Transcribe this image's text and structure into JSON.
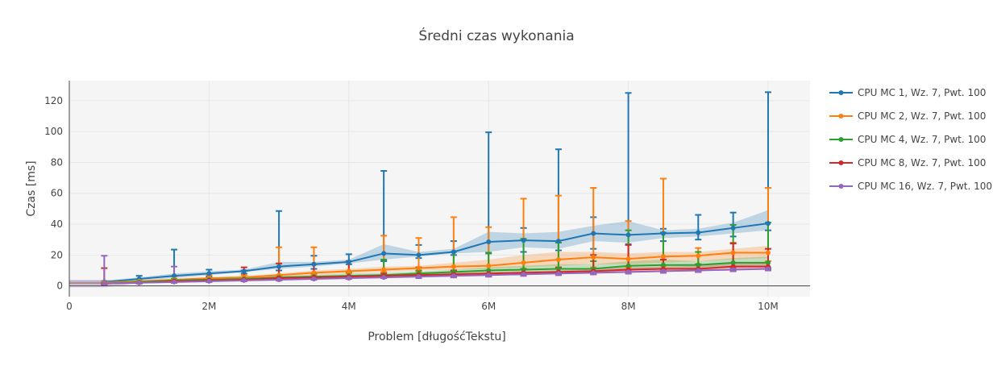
{
  "chart_data": {
    "type": "line",
    "title": "Średni czas wykonania",
    "xlabel": "Problem [długośćTekstu]",
    "ylabel": "Czas [ms]",
    "xlim": [
      0,
      10600000
    ],
    "ylim": [
      -7,
      133
    ],
    "x_ticks": [
      0,
      2000000,
      4000000,
      6000000,
      8000000,
      10000000
    ],
    "x_tick_labels": [
      "0",
      "2M",
      "4M",
      "6M",
      "8M",
      "10M"
    ],
    "y_ticks": [
      0,
      20,
      40,
      60,
      80,
      100,
      120
    ],
    "y_tick_labels": [
      "0",
      "20",
      "40",
      "60",
      "80",
      "100",
      "120"
    ],
    "grid": true,
    "legend_position": "right",
    "x": [
      500000,
      1000000,
      1500000,
      2000000,
      2500000,
      3000000,
      3500000,
      4000000,
      4500000,
      5000000,
      5500000,
      6000000,
      6500000,
      7000000,
      7500000,
      8000000,
      8500000,
      9000000,
      9500000,
      10000000
    ],
    "series": [
      {
        "name": "CPU MC 1, Wz. 7, Pwt. 100",
        "color": "#1f77b4",
        "values": [
          2.5,
          4.5,
          6.5,
          8,
          9.5,
          12.5,
          14,
          15.5,
          21,
          20,
          22,
          28.5,
          29.5,
          29,
          34,
          33,
          34,
          34.5,
          37.5,
          40.5
        ],
        "err_low": [
          1,
          3,
          4,
          6,
          8,
          10,
          11,
          14,
          16,
          18,
          20,
          21,
          22,
          23,
          24,
          27,
          29,
          30,
          32,
          36
        ],
        "err_high": [
          3,
          6.5,
          23.5,
          10.5,
          10,
          48.5,
          19.5,
          20.5,
          74.5,
          26.5,
          29,
          99.5,
          37.5,
          88.5,
          44.5,
          125,
          37,
          46,
          47.5,
          125.5
        ],
        "band_low": [
          1.5,
          3.5,
          5,
          7,
          9,
          11,
          12.5,
          14.5,
          17,
          19,
          21,
          22,
          25,
          24,
          29,
          28,
          31,
          32,
          34,
          36
        ],
        "band_high": [
          3.5,
          5.5,
          8,
          9.5,
          10.5,
          15.5,
          15.5,
          17,
          27,
          22,
          24,
          35,
          34,
          35,
          39,
          42,
          36,
          37,
          41,
          49
        ]
      },
      {
        "name": "CPU MC 2, Wz. 7, Pwt. 100",
        "color": "#ff7f0e",
        "values": [
          2,
          3,
          4,
          5,
          5.5,
          7,
          8.5,
          9.5,
          10.5,
          11.5,
          12.5,
          13,
          15,
          17,
          18.5,
          17.5,
          19,
          19.5,
          21.5,
          21.5
        ],
        "err_low": [
          1,
          2,
          3,
          4,
          5,
          6,
          7,
          8,
          9,
          9,
          10,
          10,
          11,
          11,
          12,
          12,
          13,
          14,
          15,
          16
        ],
        "err_high": [
          3,
          4,
          6,
          7,
          7,
          25,
          25,
          16,
          32.5,
          31,
          44.5,
          38,
          56.5,
          58.5,
          63.5,
          42,
          69.5,
          24.5,
          28,
          63.5
        ],
        "band_low": [
          1.5,
          2.5,
          3.5,
          4.5,
          5,
          6,
          7,
          8,
          9,
          10,
          10.5,
          11,
          12,
          13,
          14,
          14,
          15,
          16,
          17,
          18
        ],
        "band_high": [
          2.5,
          3.5,
          4.5,
          5.5,
          6.5,
          8,
          10,
          11,
          12.5,
          13,
          15,
          17,
          20,
          22,
          22,
          21,
          22,
          22,
          24,
          26
        ]
      },
      {
        "name": "CPU MC 4, Wz. 7, Pwt. 100",
        "color": "#2ca02c",
        "values": [
          1.5,
          2.5,
          3.5,
          4,
          4.5,
          5.5,
          6,
          6.5,
          7,
          8,
          9,
          10,
          10.5,
          11,
          11,
          13,
          13.5,
          13.5,
          15,
          15
        ],
        "err_low": [
          1,
          2,
          2.5,
          3,
          3.5,
          4,
          4.5,
          5,
          5.5,
          6,
          6.5,
          7,
          7.5,
          8,
          8.5,
          9,
          10,
          10,
          11,
          11
        ],
        "err_high": [
          2,
          3,
          4.5,
          5,
          5.5,
          7,
          8,
          9,
          17,
          10,
          22,
          21.5,
          30.5,
          28,
          16,
          36,
          34.5,
          22,
          39.5,
          41
        ],
        "band_low": [
          1,
          2,
          3,
          3.5,
          4,
          4.5,
          5,
          5.5,
          6,
          7,
          7.5,
          8,
          8.5,
          9,
          9,
          10,
          11,
          11,
          12,
          12
        ],
        "band_high": [
          2,
          3,
          4,
          5,
          5.5,
          6.5,
          7,
          8,
          8.5,
          9.5,
          10.5,
          12,
          13,
          14,
          14,
          16,
          17,
          16,
          18,
          19
        ]
      },
      {
        "name": "CPU MC 8, Wz. 7, Pwt. 100",
        "color": "#d62728",
        "values": [
          1.5,
          2,
          3,
          3.5,
          4,
          5,
          5.5,
          6,
          6.5,
          7,
          7.5,
          8,
          8.5,
          9,
          9.5,
          10.5,
          11,
          11,
          12.5,
          12.5
        ],
        "err_low": [
          1,
          1.5,
          2,
          2.5,
          3,
          3.5,
          4,
          4.5,
          5,
          5,
          5.5,
          6,
          6.5,
          7,
          7.5,
          8,
          8.5,
          9,
          9.5,
          10
        ],
        "err_high": [
          11.5,
          2.5,
          3.5,
          4.5,
          12,
          14.5,
          14,
          16,
          8,
          12,
          10,
          10,
          11,
          12,
          20,
          26.5,
          17,
          14,
          27.5,
          24
        ],
        "band_low": [
          1,
          1.5,
          2.5,
          3,
          3.5,
          4,
          4.5,
          5,
          5.5,
          6,
          6.5,
          7,
          7.5,
          8,
          8,
          9,
          9.5,
          10,
          11,
          11
        ],
        "band_high": [
          2.5,
          2.5,
          3.5,
          4,
          4.5,
          6,
          6.5,
          7,
          7.5,
          8,
          8.5,
          9,
          9.5,
          10,
          11,
          12,
          12.5,
          13,
          15,
          15
        ]
      },
      {
        "name": "CPU MC 16, Wz. 7, Pwt. 100",
        "color": "#9467bd",
        "values": [
          1.5,
          2,
          2.5,
          3,
          3.5,
          4,
          4.5,
          5,
          5.5,
          6,
          6.5,
          7,
          7.5,
          8,
          8.5,
          9,
          9.5,
          10,
          10.5,
          11
        ],
        "err_low": [
          0.5,
          1.5,
          2,
          2.5,
          3,
          3.5,
          4,
          4.5,
          5,
          5,
          5.5,
          6,
          6.5,
          7,
          7.5,
          8,
          8.5,
          9,
          9.5,
          10
        ],
        "err_high": [
          19.5,
          2.5,
          12.5,
          3.5,
          4,
          5,
          5.5,
          6,
          6.5,
          7,
          7.5,
          8,
          8.5,
          9,
          9.5,
          10,
          10.5,
          11,
          11.5,
          12
        ],
        "band_low": [
          -1,
          1.5,
          2,
          2.5,
          3,
          3.5,
          4,
          4.5,
          5,
          5.5,
          6,
          6.5,
          7,
          7.5,
          8,
          8.5,
          9,
          9.5,
          10,
          10.5
        ],
        "band_high": [
          4,
          2.5,
          4,
          3.5,
          4,
          4.5,
          5,
          5.5,
          6,
          6.5,
          7,
          7.5,
          8,
          8.5,
          9,
          9.5,
          10,
          10.5,
          11,
          11.5
        ]
      }
    ]
  }
}
